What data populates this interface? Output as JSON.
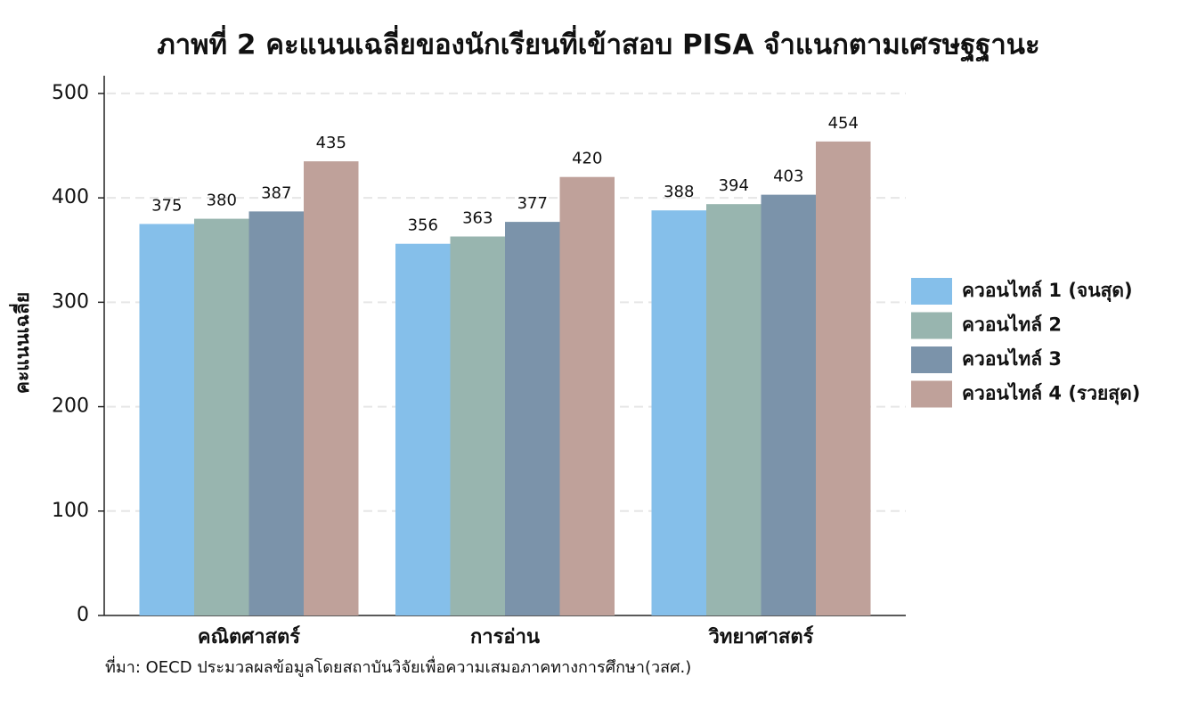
{
  "chart_data": {
    "type": "bar",
    "title": "ภาพที่ 2 คะแนนเฉลี่ยของนักเรียนที่เข้าสอบ PISA จำแนกตามเศรษฐฐานะ",
    "y_label": "คะแนนเฉลี่ย",
    "source": "ที่มา: OECD ประมวลผลข้อมูลโดยสถาบันวิจัยเพื่อความเสมอภาคทางการศึกษา(วสศ.)",
    "categories": [
      "คณิตศาสตร์",
      "การอ่าน",
      "วิทยาศาสตร์"
    ],
    "series": [
      {
        "name": "ควอนไทล์ 1 (จนสุด)",
        "color": "#85bfea",
        "values": [
          375,
          356,
          388
        ]
      },
      {
        "name": "ควอนไทล์ 2",
        "color": "#98b5af",
        "values": [
          380,
          363,
          394
        ]
      },
      {
        "name": "ควอนไทล์ 3",
        "color": "#7b93aa",
        "values": [
          387,
          377,
          403
        ]
      },
      {
        "name": "ควอนไทล์ 4 (รวยสุด)",
        "color": "#bfa19a",
        "values": [
          435,
          420,
          454
        ]
      }
    ],
    "ylim": [
      0,
      517
    ],
    "yticks": [
      0,
      100,
      200,
      300,
      400,
      500
    ],
    "grid": true,
    "legend": "right"
  }
}
